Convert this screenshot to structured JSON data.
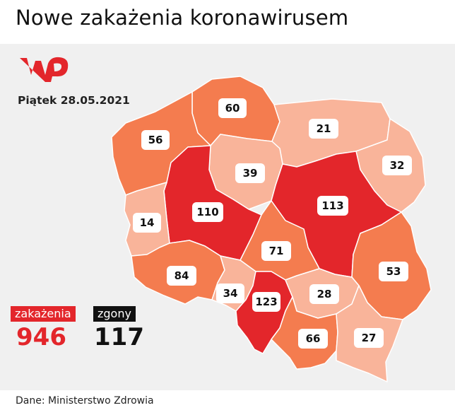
{
  "title": "Nowe zakażenia koronawirusem",
  "date": "Piątek 28.05.2021",
  "logo_text": "WP",
  "totals": {
    "infections_label": "zakażenia",
    "infections_value": "946",
    "deaths_label": "zgony",
    "deaths_value": "117"
  },
  "source": "Dane: Ministerstwo Zdrowia",
  "colors": {
    "high": "#e3262b",
    "medium": "#f47c4f",
    "low": "#f9b49a",
    "border": "#ffffff",
    "accent": "#e3262b"
  },
  "regions": [
    {
      "value": "60",
      "level": "medium"
    },
    {
      "value": "21",
      "level": "low"
    },
    {
      "value": "56",
      "level": "medium"
    },
    {
      "value": "39",
      "level": "low"
    },
    {
      "value": "32",
      "level": "low"
    },
    {
      "value": "110",
      "level": "high"
    },
    {
      "value": "113",
      "level": "high"
    },
    {
      "value": "14",
      "level": "low"
    },
    {
      "value": "71",
      "level": "medium"
    },
    {
      "value": "84",
      "level": "medium"
    },
    {
      "value": "53",
      "level": "medium"
    },
    {
      "value": "34",
      "level": "low"
    },
    {
      "value": "123",
      "level": "high"
    },
    {
      "value": "28",
      "level": "low"
    },
    {
      "value": "66",
      "level": "medium"
    },
    {
      "value": "27",
      "level": "low"
    }
  ]
}
